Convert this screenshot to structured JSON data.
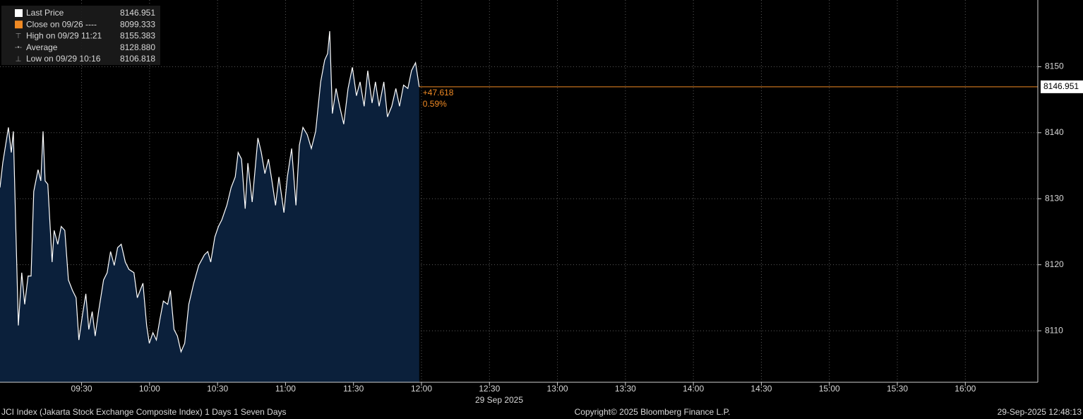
{
  "chart_data": {
    "type": "area",
    "stats": [
      {
        "name": "Last Price",
        "value": 8146.951
      },
      {
        "name": "Close on 09/26 ----",
        "value": 8099.333
      },
      {
        "name": "High on 09/29 11:21",
        "value": 8155.383
      },
      {
        "name": "Average",
        "value": {
          "value": 8128.88,
          "label": "8128.880"
        }
      },
      {
        "name": "Low on 09/29 10:16",
        "value": 8106.818
      }
    ],
    "change": {
      "value": 47.618,
      "label": "+47.618"
    },
    "change_pct": {
      "value": 0.59,
      "label": "0.59%"
    },
    "date_label": "29 Sep 2025",
    "footer_left": "JCI Index (Jakarta Stock Exchange Composite Index) 1 Days 1 Seven Days",
    "footer_center": "Copyright© 2025 Bloomberg Finance L.P.",
    "footer_right": "29-Sep-2025 12:48:13",
    "line_color": "#ffffff",
    "area_color": "#0b203b",
    "last_color": "#f08a24",
    "grid": true,
    "xlim": [
      534,
      992
    ],
    "xticks": [
      {
        "value": 570,
        "label": "09:30"
      },
      {
        "value": 600,
        "label": "10:00"
      },
      {
        "value": 630,
        "label": "10:30"
      },
      {
        "value": 660,
        "label": "11:00"
      },
      {
        "value": 690,
        "label": "11:30"
      },
      {
        "value": 720,
        "label": "12:00"
      },
      {
        "value": 750,
        "label": "12:30"
      },
      {
        "value": 780,
        "label": "13:00"
      },
      {
        "value": 810,
        "label": "13:30"
      },
      {
        "value": 840,
        "label": "14:00"
      },
      {
        "value": 870,
        "label": "14:30"
      },
      {
        "value": 900,
        "label": "15:00"
      },
      {
        "value": 930,
        "label": "15:30"
      },
      {
        "value": 960,
        "label": "16:00"
      }
    ],
    "ylim": [
      8102.2,
      8160.1
    ],
    "yticks": [
      8110,
      8120,
      8130,
      8140,
      8150
    ],
    "x": [
      534,
      535.2,
      537.7,
      539,
      539.9,
      540.8,
      542.1,
      543.6,
      544.9,
      546.4,
      547.7,
      548.9,
      550.8,
      552,
      553,
      553.9,
      555.1,
      557,
      557.9,
      559.5,
      561,
      562.6,
      564.2,
      566,
      567.6,
      568.8,
      570.4,
      571.9,
      573.2,
      574.7,
      576,
      577.5,
      579.7,
      581.3,
      582.8,
      584.4,
      585.9,
      587.5,
      589.3,
      590.9,
      593.1,
      594.6,
      597.1,
      598.7,
      599.9,
      601.5,
      603,
      604.6,
      606.1,
      608,
      609.2,
      610.8,
      612.3,
      613.9,
      615.5,
      617.3,
      619.5,
      621.7,
      624.2,
      625.7,
      627,
      628.8,
      630.4,
      631.9,
      634.1,
      636,
      637.8,
      639.1,
      640.6,
      642.2,
      643.4,
      645.3,
      647.8,
      649.3,
      650.9,
      652.5,
      654,
      655.6,
      657.1,
      659.3,
      660.8,
      662.7,
      664.6,
      666.1,
      667.7,
      669.6,
      671.4,
      673.3,
      675.5,
      677.3,
      678.6,
      679.5,
      680.7,
      682.3,
      683.9,
      685.7,
      687.6,
      689.5,
      691.3,
      692.9,
      694.7,
      696.3,
      698.2,
      699.7,
      701.3,
      703.4,
      705,
      706.9,
      708.7,
      710.3,
      712.1,
      714,
      715.6,
      717.4,
      719
    ],
    "values": [
      8131.7,
      8135.4,
      8140.8,
      8137,
      8140.2,
      8127.9,
      8110.8,
      8118.8,
      8114,
      8118.3,
      8118.3,
      8131.1,
      8134.4,
      8132.7,
      8140.2,
      8132.7,
      8132.2,
      8120.4,
      8125.2,
      8123.1,
      8125.8,
      8125.2,
      8117.7,
      8116.1,
      8115,
      8108.6,
      8112.4,
      8115.6,
      8110.2,
      8112.9,
      8109.2,
      8112.9,
      8117.7,
      8118.8,
      8122,
      8119.9,
      8122.6,
      8123.1,
      8120.4,
      8119.3,
      8118.8,
      8115,
      8117.2,
      8110.8,
      8108.1,
      8109.7,
      8108.6,
      8111.8,
      8114.5,
      8114,
      8116.1,
      8110.2,
      8109.2,
      8106.818,
      8108.1,
      8114,
      8117.2,
      8119.9,
      8121.5,
      8122,
      8120.4,
      8124.2,
      8125.8,
      8126.8,
      8129,
      8131.7,
      8133.3,
      8137,
      8136,
      8128.5,
      8135.4,
      8129.5,
      8139.2,
      8137,
      8133.8,
      8136,
      8132.7,
      8129,
      8133.3,
      8127.9,
      8133.3,
      8137.6,
      8129,
      8138.1,
      8140.8,
      8139.7,
      8137.6,
      8140.2,
      8147.7,
      8151,
      8152,
      8155.383,
      8142.9,
      8146.7,
      8144,
      8141.3,
      8146.7,
      8149.9,
      8145.6,
      8147.7,
      8144,
      8149.4,
      8144.5,
      8147.7,
      8144,
      8147.7,
      8142.4,
      8144,
      8146.7,
      8144,
      8147.2,
      8146.7,
      8149.4,
      8150.6,
      8146.951
    ]
  }
}
